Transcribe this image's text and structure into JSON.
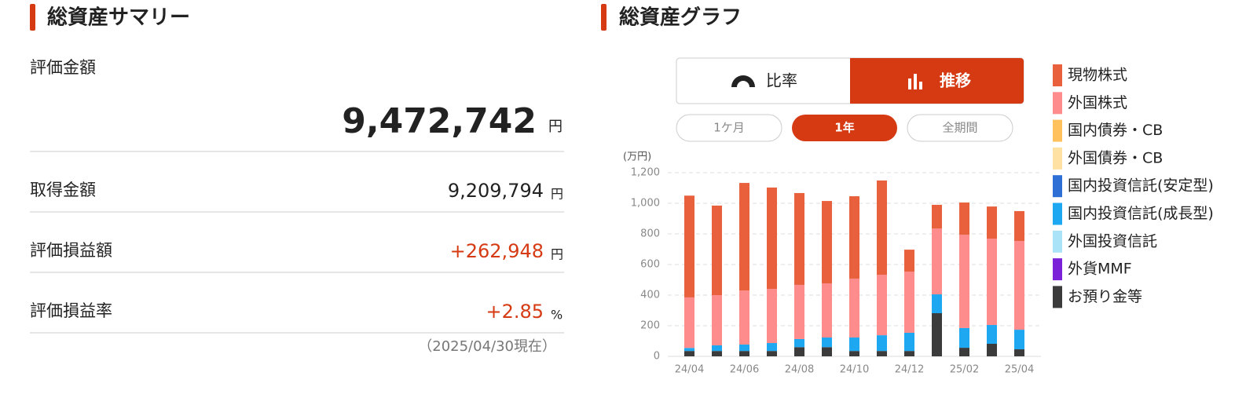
{
  "summary": {
    "title": "総資産サマリー",
    "main": {
      "label": "評価金額",
      "value": "9,472,742",
      "unit": "円"
    },
    "rows": [
      {
        "label": "取得金額",
        "value": "9,209,794",
        "unit": "円"
      },
      {
        "label": "評価損益額",
        "value": "+262,948",
        "unit": "円"
      },
      {
        "label": "評価損益率",
        "value": "+2.85",
        "unit": "%"
      }
    ],
    "note": "（2025/04/30現在）"
  },
  "graph": {
    "title": "総資産グラフ",
    "tabs": [
      "比率",
      "推移"
    ],
    "periods": [
      "1ケ月",
      "1年",
      "全期間"
    ]
  },
  "chart_data": {
    "type": "bar",
    "stacked": true,
    "y_label": "(万円)",
    "categories": [
      "24/04",
      null,
      "24/06",
      null,
      "24/08",
      null,
      "24/10",
      null,
      "24/12",
      null,
      "25/02",
      null,
      "25/04"
    ],
    "ylim": [
      0,
      1200
    ],
    "yticks": [
      0,
      200,
      400,
      600,
      800,
      {
        "value": 1000,
        "label": "1,000"
      },
      {
        "value": 1200,
        "label": "1,200"
      }
    ],
    "grid": true,
    "series": [
      {
        "name": "現物株式",
        "color": "#e8603c",
        "values": [
          665,
          585,
          703,
          663,
          600,
          538,
          538,
          616,
          143,
          154,
          210,
          210,
          195
        ]
      },
      {
        "name": "外国株式",
        "color": "#ff8c8c",
        "values": [
          330,
          328,
          353,
          353,
          354,
          354,
          385,
          395,
          400,
          431,
          610,
          564,
          580
        ]
      },
      {
        "name": "国内債券・CB",
        "color": "#ffc15c",
        "values": [
          0,
          0,
          0,
          0,
          0,
          0,
          0,
          0,
          0,
          0,
          0,
          0,
          0
        ]
      },
      {
        "name": "外国債券・CB",
        "color": "#ffe1a3",
        "values": [
          0,
          0,
          0,
          0,
          0,
          0,
          0,
          0,
          0,
          0,
          0,
          0,
          0
        ]
      },
      {
        "name": "国内投資信託(安定型)",
        "color": "#2e6fd6",
        "values": [
          0,
          0,
          0,
          0,
          0,
          0,
          0,
          0,
          0,
          0,
          0,
          0,
          0
        ]
      },
      {
        "name": "国内投資信託(成長型)",
        "color": "#1ea8f2",
        "values": [
          20,
          37,
          42,
          52,
          53,
          63,
          88,
          103,
          119,
          123,
          129,
          123,
          128
        ]
      },
      {
        "name": "外国投資信託",
        "color": "#aae3f8",
        "values": [
          0,
          0,
          0,
          0,
          0,
          0,
          0,
          0,
          0,
          0,
          0,
          0,
          0
        ]
      },
      {
        "name": "外貨MMF",
        "color": "#7b22d9",
        "values": [
          0,
          0,
          0,
          0,
          0,
          0,
          0,
          0,
          0,
          0,
          0,
          0,
          0
        ]
      },
      {
        "name": "お預り金等",
        "color": "#3b3b3b",
        "values": [
          35,
          35,
          35,
          35,
          60,
          60,
          35,
          35,
          35,
          282,
          56,
          82,
          46
        ]
      }
    ]
  }
}
